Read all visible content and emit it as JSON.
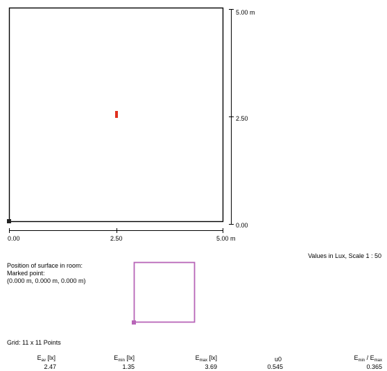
{
  "plan": {
    "right_axis": {
      "top": "5.00 m",
      "mid": "2.50",
      "bottom": "0.00"
    },
    "bottom_axis": {
      "left": "0.00",
      "mid": "2.50",
      "right": "5.00 m"
    },
    "marker_color": "#e0301e"
  },
  "scale_note": "Values in Lux, Scale 1 : 50",
  "position": {
    "line1": "Position of surface in room:",
    "line2": "Marked point:",
    "line3": "(0.000 m, 0.000 m, 0.000 m)"
  },
  "room_outline_color": "#b865b8",
  "grid_text": "Grid: 11 x 11 Points",
  "results": {
    "eav": {
      "main": "E",
      "sub": "av",
      "unit": " [lx]",
      "value": "2.47"
    },
    "emin": {
      "main": "E",
      "sub": "min",
      "unit": " [lx]",
      "value": "1.35"
    },
    "emax": {
      "main": "E",
      "sub": "max",
      "unit": " [lx]",
      "value": "3.69"
    },
    "u0": {
      "label": "u0",
      "value": "0.545"
    },
    "ratio": {
      "main1": "E",
      "sub1": "min",
      "sep": " / E",
      "sub2": "max",
      "value": "0.365"
    }
  }
}
